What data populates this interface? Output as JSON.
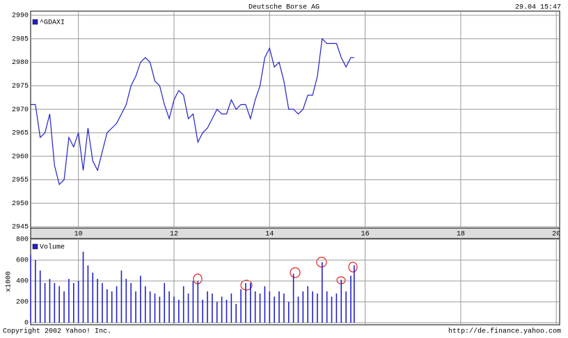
{
  "chart_data": [
    {
      "type": "line",
      "title": "Deutsche Borse AG",
      "timestamp": "29.04 15:47",
      "x": [
        9,
        9.1,
        9.2,
        9.3,
        9.4,
        9.5,
        9.6,
        9.7,
        9.8,
        9.9,
        10,
        10.1,
        10.2,
        10.3,
        10.4,
        10.5,
        10.6,
        10.7,
        10.8,
        10.9,
        11,
        11.1,
        11.2,
        11.3,
        11.4,
        11.5,
        11.6,
        11.7,
        11.8,
        11.9,
        12,
        12.1,
        12.2,
        12.3,
        12.4,
        12.5,
        12.6,
        12.7,
        12.8,
        12.9,
        13,
        13.1,
        13.2,
        13.3,
        13.4,
        13.5,
        13.6,
        13.7,
        13.8,
        13.9,
        14,
        14.1,
        14.2,
        14.3,
        14.4,
        14.5,
        14.6,
        14.7,
        14.8,
        14.9,
        15,
        15.1,
        15.2,
        15.3,
        15.4,
        15.5,
        15.6,
        15.7,
        15.77
      ],
      "series": [
        {
          "name": "^GDAXI",
          "color": "#2020c8",
          "values": [
            2971,
            2971,
            2964,
            2965,
            2969,
            2958,
            2954,
            2955,
            2964,
            2962,
            2965,
            2957,
            2966,
            2959,
            2957,
            2961,
            2965,
            2966,
            2967,
            2969,
            2971,
            2975,
            2977,
            2980,
            2981,
            2980,
            2976,
            2975,
            2971,
            2968,
            2972,
            2974,
            2973,
            2968,
            2969,
            2963,
            2965,
            2966,
            2968,
            2970,
            2969,
            2969,
            2972,
            2970,
            2971,
            2971,
            2968,
            2972,
            2975,
            2981,
            2983,
            2979,
            2980,
            2976,
            2970,
            2970,
            2969,
            2970,
            2973,
            2973,
            2977,
            2985,
            2984,
            2984,
            2984,
            2981,
            2979,
            2981,
            2981
          ]
        }
      ],
      "xlim": [
        9,
        20.07
      ],
      "xticks": [
        10,
        12,
        14,
        16,
        18,
        20
      ],
      "ylim": [
        2945,
        2990
      ],
      "yticks": [
        2945,
        2950,
        2955,
        2960,
        2965,
        2970,
        2975,
        2980,
        2985,
        2990
      ],
      "grid": true
    },
    {
      "type": "bar",
      "ylabel": "x1000",
      "x": [
        9,
        9.1,
        9.2,
        9.3,
        9.4,
        9.5,
        9.6,
        9.7,
        9.8,
        9.9,
        10,
        10.1,
        10.2,
        10.3,
        10.4,
        10.5,
        10.6,
        10.7,
        10.8,
        10.9,
        11,
        11.1,
        11.2,
        11.3,
        11.4,
        11.5,
        11.6,
        11.7,
        11.8,
        11.9,
        12,
        12.1,
        12.2,
        12.3,
        12.4,
        12.5,
        12.6,
        12.7,
        12.8,
        12.9,
        13,
        13.1,
        13.2,
        13.3,
        13.4,
        13.5,
        13.6,
        13.7,
        13.8,
        13.9,
        14,
        14.1,
        14.2,
        14.3,
        14.4,
        14.5,
        14.6,
        14.7,
        14.8,
        14.9,
        15,
        15.1,
        15.2,
        15.3,
        15.4,
        15.5,
        15.6,
        15.7,
        15.77
      ],
      "series": [
        {
          "name": "Volume",
          "color": "#2020c8",
          "values": [
            650,
            600,
            500,
            380,
            420,
            380,
            350,
            300,
            420,
            380,
            400,
            680,
            550,
            480,
            420,
            380,
            320,
            300,
            350,
            500,
            420,
            380,
            300,
            450,
            350,
            300,
            280,
            250,
            380,
            300,
            250,
            220,
            350,
            280,
            400,
            400,
            220,
            300,
            280,
            200,
            250,
            220,
            280,
            180,
            320,
            380,
            380,
            300,
            280,
            350,
            300,
            250,
            300,
            280,
            200,
            470,
            250,
            300,
            350,
            300,
            280,
            580,
            300,
            250,
            280,
            410,
            300,
            450,
            550
          ]
        }
      ],
      "xlim": [
        9,
        20.07
      ],
      "ylim": [
        0,
        800
      ],
      "yticks": [
        0,
        200,
        400,
        600,
        800
      ],
      "grid": true
    }
  ],
  "footer": {
    "copyright": "Copyright 2002 Yahoo! Inc.",
    "url": "http://de.finance.yahoo.com"
  }
}
